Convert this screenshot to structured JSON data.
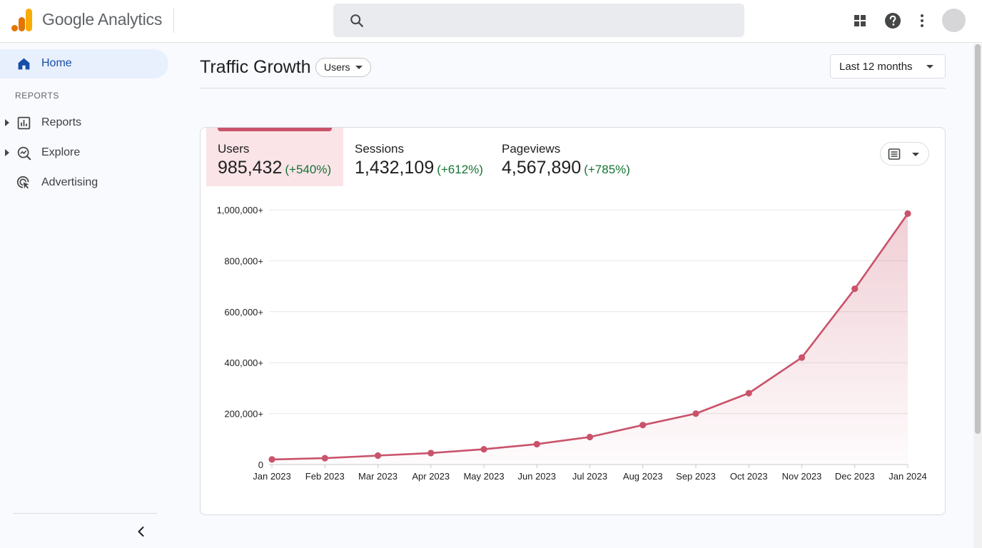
{
  "app": {
    "brand": "Google Analytics",
    "search": {
      "value": "",
      "placeholder": ""
    },
    "header_icons": [
      "apps-grid-icon",
      "help-icon",
      "more-vert-icon",
      "avatar"
    ]
  },
  "sidebar": {
    "home": {
      "label": "Home",
      "icon": "home-icon"
    },
    "section_label": "REPORTS",
    "items": [
      {
        "label": "Reports",
        "icon": "bar-chart-icon",
        "expandable": true
      },
      {
        "label": "Explore",
        "icon": "explore-icon",
        "expandable": true
      },
      {
        "label": "Advertising",
        "icon": "advertising-icon",
        "expandable": false
      }
    ]
  },
  "page": {
    "title": "Traffic Growth",
    "metric_selector": "Users",
    "date_range": "Last 12 months"
  },
  "metric_tabs": [
    {
      "name": "Users",
      "value": "985,432",
      "change": "(+540%)",
      "active": true
    },
    {
      "name": "Sessions",
      "value": "1,432,109",
      "change": "(+612%)",
      "active": false
    },
    {
      "name": "Pageviews",
      "value": "4,567,890",
      "change": "(+785%)",
      "active": false
    }
  ],
  "colors": {
    "accent": "#c9536b",
    "active_tab_bg": "#fae4e8",
    "positive": "#137333",
    "home_highlight": "#e8f0fe"
  },
  "chart_data": {
    "type": "line",
    "x": [
      "Jan 2023",
      "Feb 2023",
      "Mar 2023",
      "Apr 2023",
      "May 2023",
      "Jun 2023",
      "Jul 2023",
      "Aug 2023",
      "Sep 2023",
      "Oct 2023",
      "Nov 2023",
      "Dec 2023",
      "Jan 2024"
    ],
    "series": [
      {
        "name": "Users",
        "values": [
          20000,
          25000,
          35000,
          45000,
          60000,
          80000,
          108000,
          155000,
          200000,
          280000,
          420000,
          690000,
          985000
        ]
      }
    ],
    "y_ticks": [
      "0",
      "200,000+",
      "400,000+",
      "600,000+",
      "800,000+",
      "1,000,000+"
    ],
    "ylim": [
      0,
      1000000
    ],
    "grid": true,
    "area_fill": true
  }
}
